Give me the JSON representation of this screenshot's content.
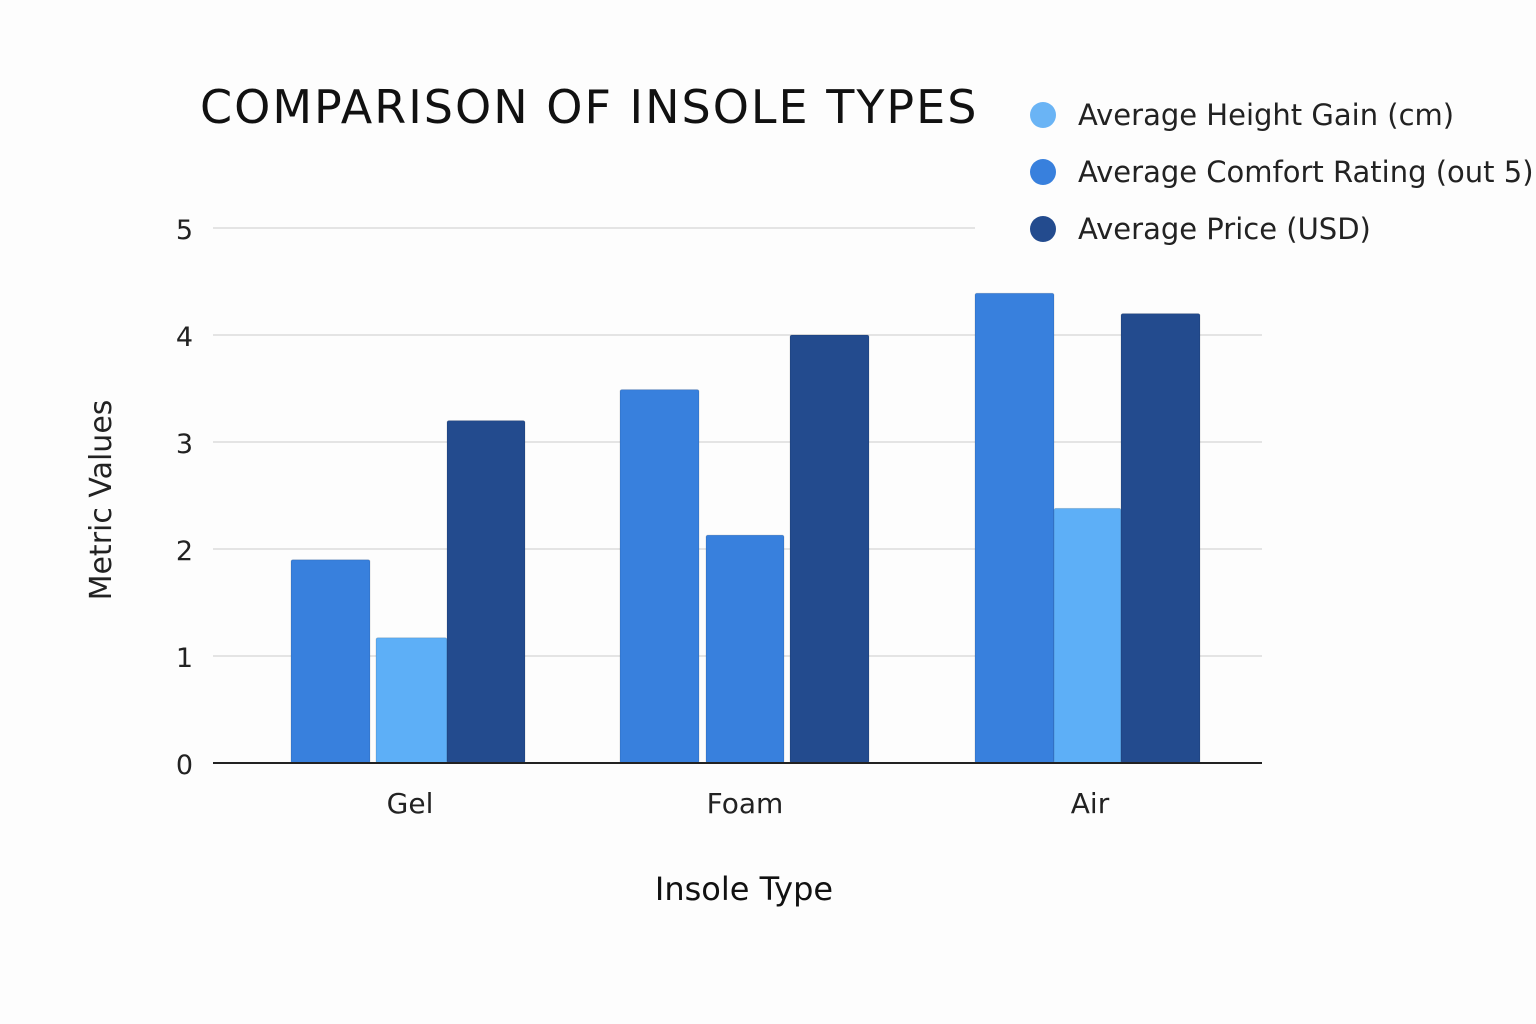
{
  "chart_data": {
    "type": "bar",
    "title": "COMPARISON OF INSOLE TYPES",
    "xlabel": "Insole Type",
    "ylabel": "Metric Values",
    "categories": [
      "Gel",
      "Foam",
      "Air"
    ],
    "ylim": [
      0,
      5
    ],
    "yticks": [
      "0",
      "1",
      "2",
      "3",
      "4",
      "5"
    ],
    "grid": true,
    "legend_position": "top-right",
    "legend": [
      {
        "label": "Average Height Gain (cm)",
        "color": "#6ab4f5"
      },
      {
        "label": "Average Comfort Rating (out 5)",
        "color": "#3880dd"
      },
      {
        "label": "Average Price (USD)",
        "color": "#234b8e"
      }
    ],
    "bar_groups": [
      {
        "category": "Gel",
        "bars": [
          {
            "value": 1.9,
            "color": "#3880dd"
          },
          {
            "value": 1.17,
            "color": "#5daff7"
          },
          {
            "value": 3.2,
            "color": "#234b8e"
          }
        ]
      },
      {
        "category": "Foam",
        "bars": [
          {
            "value": 3.49,
            "color": "#3880dd"
          },
          {
            "value": 2.13,
            "color": "#3880dd"
          },
          {
            "value": 4.0,
            "color": "#234b8e"
          }
        ]
      },
      {
        "category": "Air",
        "bars": [
          {
            "value": 4.39,
            "color": "#3880dd"
          },
          {
            "value": 2.38,
            "color": "#5daff7"
          },
          {
            "value": 4.2,
            "color": "#234b8e"
          }
        ]
      }
    ]
  }
}
